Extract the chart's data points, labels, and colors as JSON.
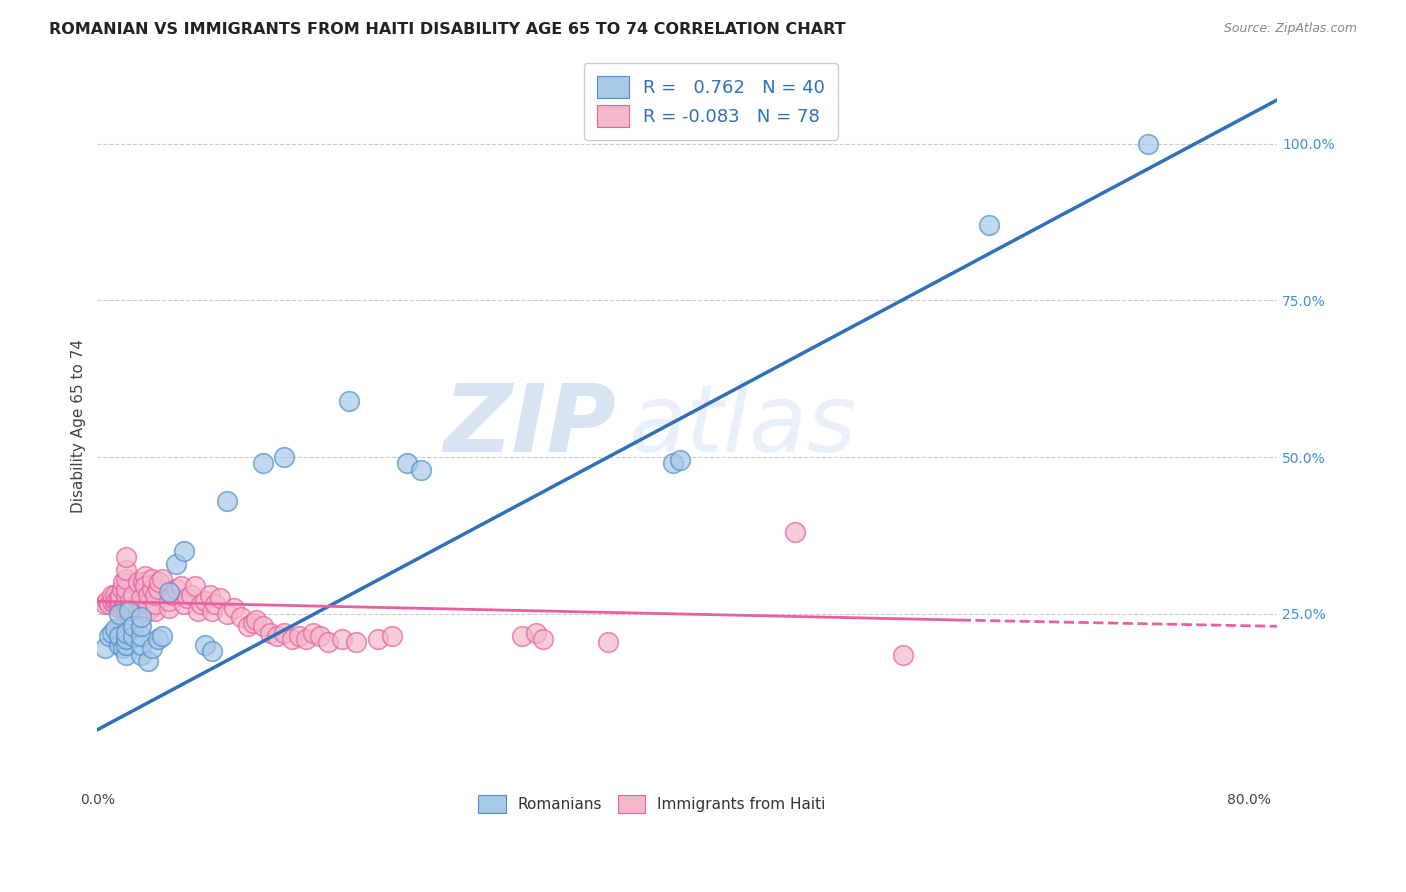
{
  "title": "ROMANIAN VS IMMIGRANTS FROM HAITI DISABILITY AGE 65 TO 74 CORRELATION CHART",
  "source": "Source: ZipAtlas.com",
  "ylabel": "Disability Age 65 to 74",
  "xlim": [
    0.0,
    0.82
  ],
  "ylim": [
    -0.02,
    1.12
  ],
  "xticks": [
    0.0,
    0.1,
    0.2,
    0.3,
    0.4,
    0.5,
    0.6,
    0.7,
    0.8
  ],
  "xticklabels": [
    "0.0%",
    "",
    "",
    "",
    "",
    "",
    "",
    "",
    "80.0%"
  ],
  "yticks_right": [
    0.25,
    0.5,
    0.75,
    1.0
  ],
  "yticklabels_right": [
    "25.0%",
    "50.0%",
    "75.0%",
    "100.0%"
  ],
  "color_blue": "#a8c8e8",
  "color_pink": "#f4b8c8",
  "edge_blue": "#5090c8",
  "edge_pink": "#e860a0",
  "line_color_blue": "#3070b8",
  "line_color_pink": "#e860a0",
  "watermark_zip": "ZIP",
  "watermark_atlas": "atlas",
  "romanians": [
    [
      0.005,
      0.195
    ],
    [
      0.008,
      0.215
    ],
    [
      0.01,
      0.22
    ],
    [
      0.012,
      0.225
    ],
    [
      0.015,
      0.2
    ],
    [
      0.015,
      0.215
    ],
    [
      0.015,
      0.25
    ],
    [
      0.018,
      0.195
    ],
    [
      0.02,
      0.185
    ],
    [
      0.02,
      0.2
    ],
    [
      0.02,
      0.21
    ],
    [
      0.02,
      0.22
    ],
    [
      0.022,
      0.255
    ],
    [
      0.025,
      0.215
    ],
    [
      0.025,
      0.23
    ],
    [
      0.03,
      0.185
    ],
    [
      0.03,
      0.2
    ],
    [
      0.03,
      0.215
    ],
    [
      0.03,
      0.23
    ],
    [
      0.03,
      0.245
    ],
    [
      0.035,
      0.175
    ],
    [
      0.038,
      0.195
    ],
    [
      0.042,
      0.21
    ],
    [
      0.045,
      0.215
    ],
    [
      0.05,
      0.285
    ],
    [
      0.055,
      0.33
    ],
    [
      0.06,
      0.35
    ],
    [
      0.075,
      0.2
    ],
    [
      0.08,
      0.19
    ],
    [
      0.09,
      0.43
    ],
    [
      0.115,
      0.49
    ],
    [
      0.13,
      0.5
    ],
    [
      0.175,
      0.59
    ],
    [
      0.215,
      0.49
    ],
    [
      0.225,
      0.48
    ],
    [
      0.4,
      0.49
    ],
    [
      0.405,
      0.495
    ],
    [
      0.62,
      0.87
    ],
    [
      0.73,
      1.0
    ]
  ],
  "haitians": [
    [
      0.005,
      0.265
    ],
    [
      0.007,
      0.27
    ],
    [
      0.008,
      0.265
    ],
    [
      0.01,
      0.27
    ],
    [
      0.01,
      0.28
    ],
    [
      0.012,
      0.28
    ],
    [
      0.012,
      0.265
    ],
    [
      0.013,
      0.27
    ],
    [
      0.015,
      0.26
    ],
    [
      0.015,
      0.265
    ],
    [
      0.015,
      0.27
    ],
    [
      0.015,
      0.275
    ],
    [
      0.016,
      0.28
    ],
    [
      0.017,
      0.29
    ],
    [
      0.018,
      0.3
    ],
    [
      0.018,
      0.26
    ],
    [
      0.019,
      0.265
    ],
    [
      0.02,
      0.255
    ],
    [
      0.02,
      0.265
    ],
    [
      0.02,
      0.28
    ],
    [
      0.02,
      0.29
    ],
    [
      0.02,
      0.305
    ],
    [
      0.02,
      0.32
    ],
    [
      0.02,
      0.34
    ],
    [
      0.022,
      0.26
    ],
    [
      0.023,
      0.27
    ],
    [
      0.025,
      0.28
    ],
    [
      0.028,
      0.3
    ],
    [
      0.03,
      0.265
    ],
    [
      0.03,
      0.275
    ],
    [
      0.032,
      0.3
    ],
    [
      0.033,
      0.31
    ],
    [
      0.033,
      0.295
    ],
    [
      0.035,
      0.255
    ],
    [
      0.035,
      0.265
    ],
    [
      0.035,
      0.28
    ],
    [
      0.038,
      0.29
    ],
    [
      0.038,
      0.305
    ],
    [
      0.04,
      0.255
    ],
    [
      0.04,
      0.265
    ],
    [
      0.04,
      0.28
    ],
    [
      0.042,
      0.29
    ],
    [
      0.043,
      0.3
    ],
    [
      0.045,
      0.305
    ],
    [
      0.05,
      0.26
    ],
    [
      0.05,
      0.27
    ],
    [
      0.052,
      0.28
    ],
    [
      0.055,
      0.29
    ],
    [
      0.058,
      0.295
    ],
    [
      0.06,
      0.265
    ],
    [
      0.062,
      0.275
    ],
    [
      0.065,
      0.28
    ],
    [
      0.068,
      0.295
    ],
    [
      0.07,
      0.255
    ],
    [
      0.072,
      0.265
    ],
    [
      0.075,
      0.27
    ],
    [
      0.078,
      0.28
    ],
    [
      0.08,
      0.255
    ],
    [
      0.082,
      0.265
    ],
    [
      0.085,
      0.275
    ],
    [
      0.09,
      0.25
    ],
    [
      0.095,
      0.26
    ],
    [
      0.1,
      0.245
    ],
    [
      0.105,
      0.23
    ],
    [
      0.108,
      0.235
    ],
    [
      0.11,
      0.24
    ],
    [
      0.115,
      0.23
    ],
    [
      0.12,
      0.22
    ],
    [
      0.125,
      0.215
    ],
    [
      0.13,
      0.22
    ],
    [
      0.135,
      0.21
    ],
    [
      0.14,
      0.215
    ],
    [
      0.145,
      0.21
    ],
    [
      0.15,
      0.22
    ],
    [
      0.155,
      0.215
    ],
    [
      0.16,
      0.205
    ],
    [
      0.17,
      0.21
    ],
    [
      0.18,
      0.205
    ],
    [
      0.195,
      0.21
    ],
    [
      0.205,
      0.215
    ],
    [
      0.295,
      0.215
    ],
    [
      0.305,
      0.22
    ],
    [
      0.31,
      0.21
    ],
    [
      0.355,
      0.205
    ],
    [
      0.485,
      0.38
    ],
    [
      0.56,
      0.185
    ]
  ],
  "blue_line": {
    "x0": 0.0,
    "y0": 0.065,
    "x1": 0.82,
    "y1": 1.07
  },
  "pink_line_solid": {
    "x0": 0.0,
    "y0": 0.27,
    "x1": 0.6,
    "y1": 0.24
  },
  "pink_line_dashed": {
    "x0": 0.6,
    "y0": 0.24,
    "x1": 0.82,
    "y1": 0.23
  },
  "background_color": "#ffffff",
  "grid_color": "#cccccc"
}
